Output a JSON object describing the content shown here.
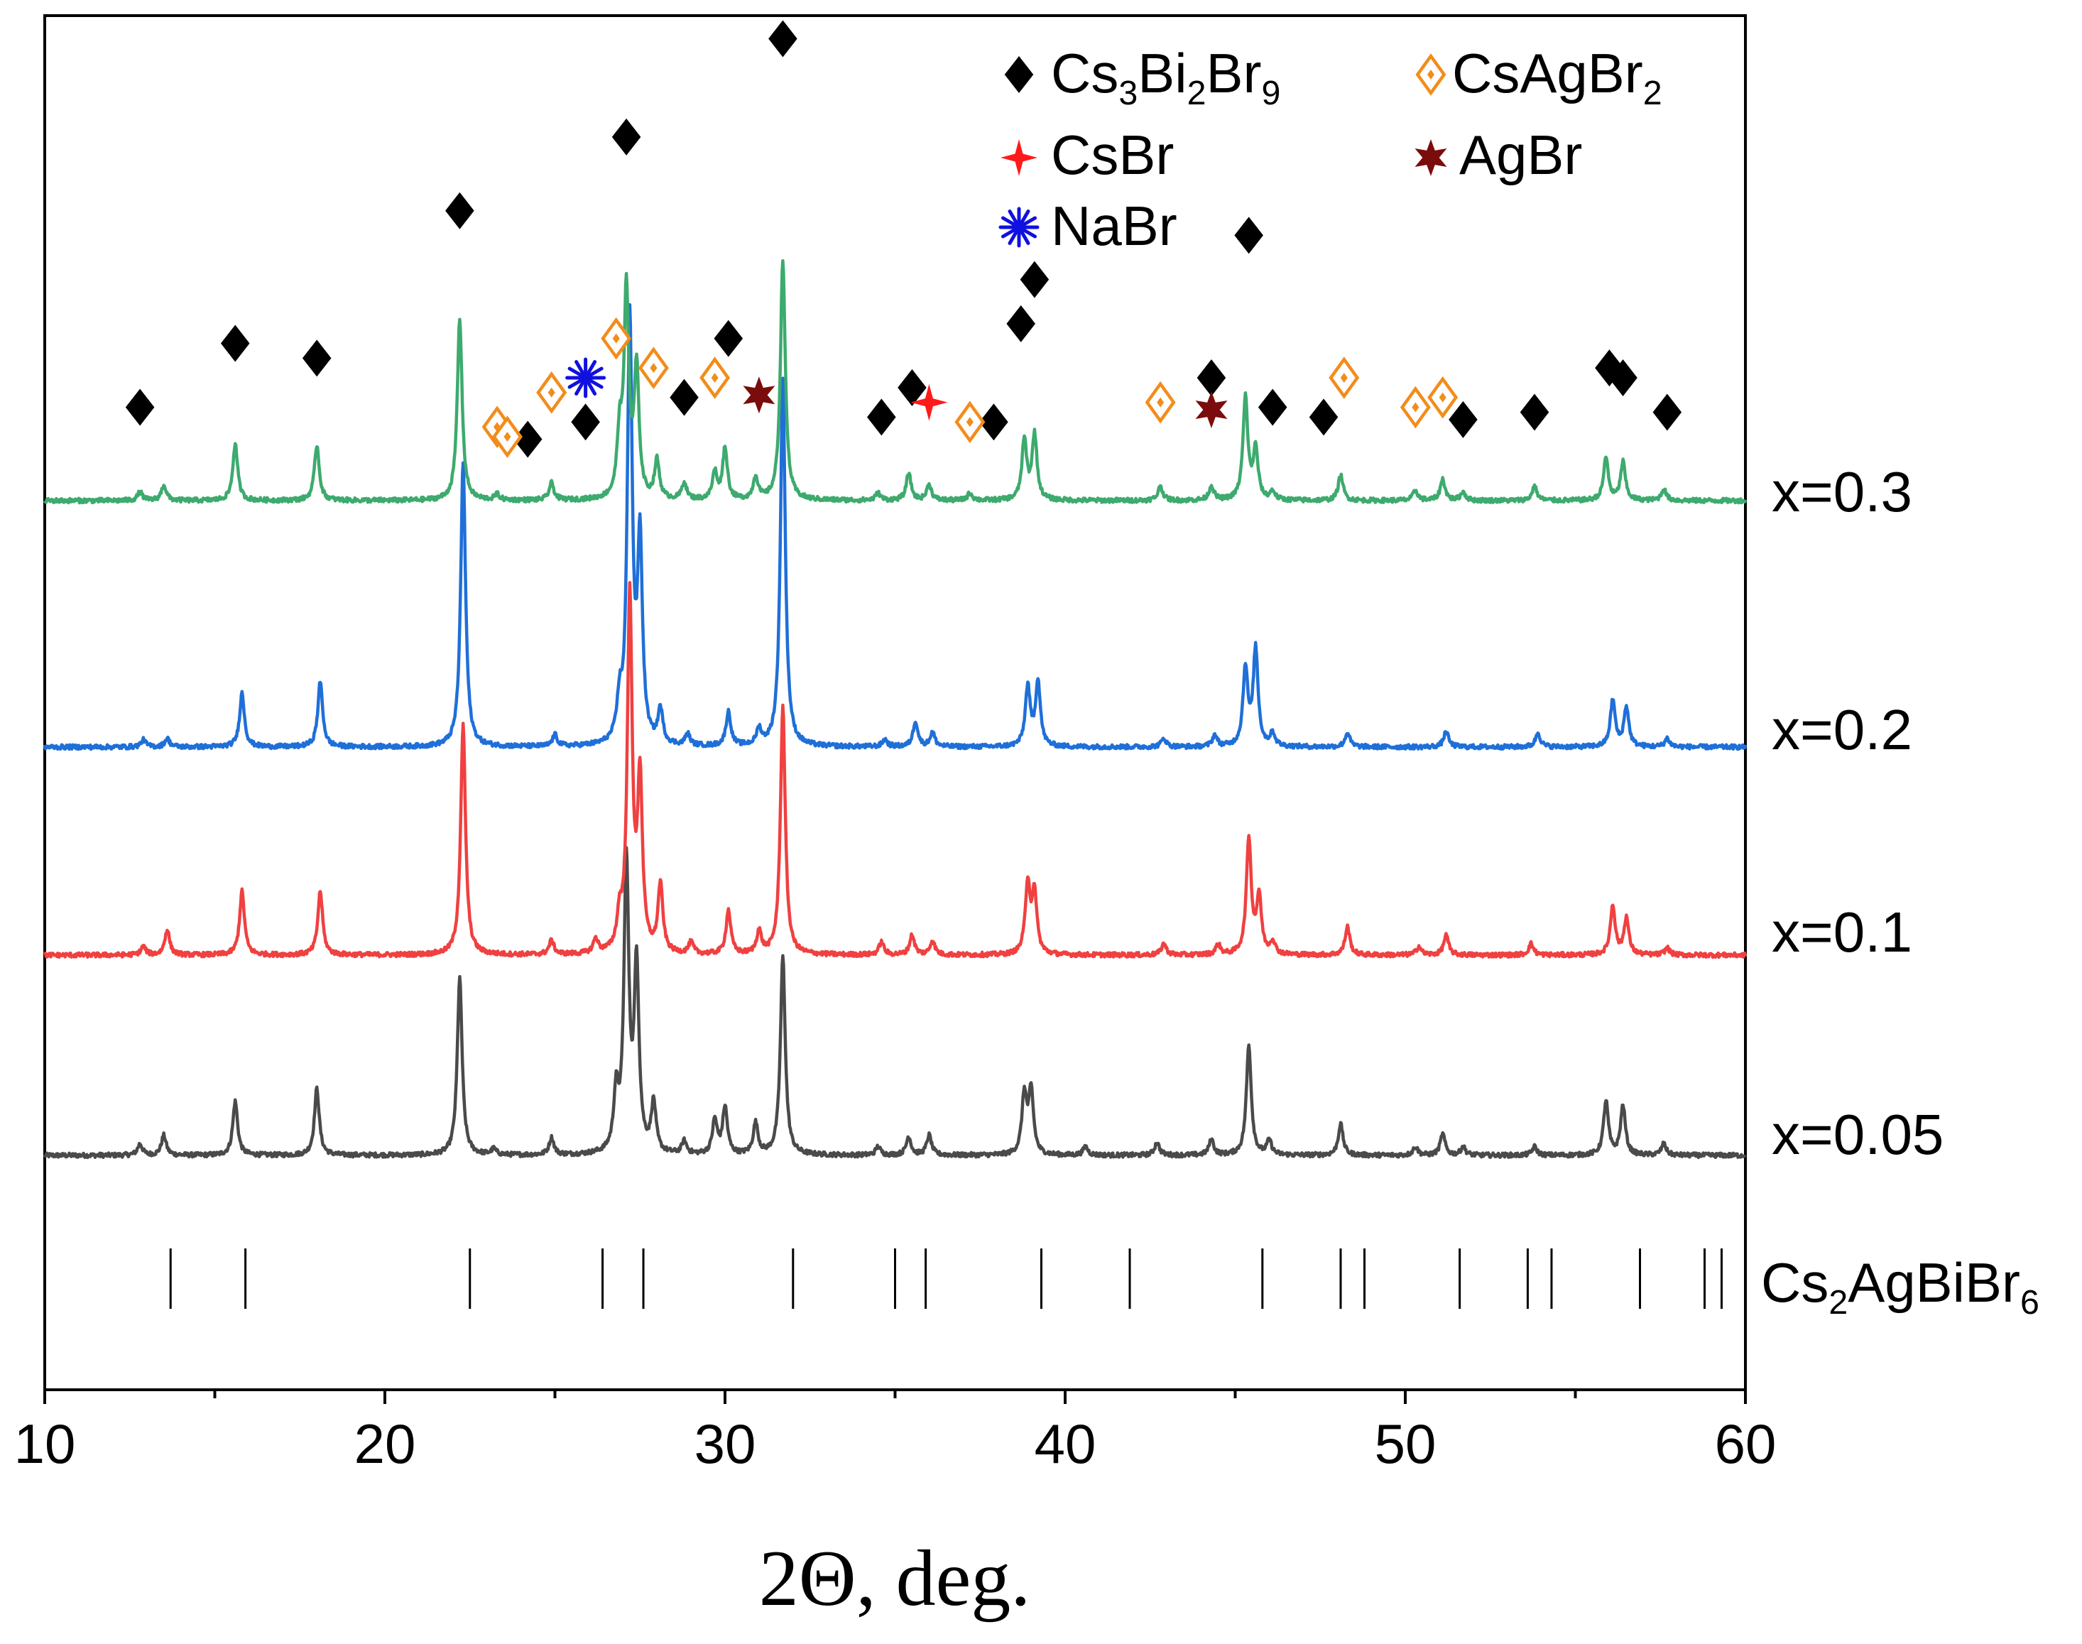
{
  "chart_data": {
    "type": "line",
    "title": "",
    "xlabel": "2Θ, deg.",
    "ylabel": "",
    "xlim": [
      10,
      60
    ],
    "x_ticks": [
      10,
      20,
      30,
      40,
      50,
      60
    ],
    "x_tick_labels": [
      "10",
      "20",
      "30",
      "40",
      "50",
      "60"
    ],
    "grid": false,
    "legend": {
      "position": "top-right",
      "entries": [
        {
          "name": "Cs3Bi2Br9",
          "base": "Cs",
          "parts": [
            [
              "Cs",
              ""
            ],
            [
              "3",
              "sub"
            ],
            [
              "Bi",
              ""
            ],
            [
              "2",
              "sub"
            ],
            [
              "Br",
              ""
            ],
            [
              "9",
              "sub"
            ]
          ],
          "marker": "diamond-filled",
          "color": "#000000"
        },
        {
          "name": "CsAgBr2",
          "parts": [
            [
              "CsAgBr",
              ""
            ],
            [
              "2",
              "sub"
            ]
          ],
          "marker": "diamond-open",
          "color": "#f28c1a"
        },
        {
          "name": "CsBr",
          "parts": [
            [
              "CsBr",
              ""
            ]
          ],
          "marker": "star4",
          "color": "#ff1a1a"
        },
        {
          "name": "AgBr",
          "parts": [
            [
              "AgBr",
              ""
            ]
          ],
          "marker": "star6",
          "color": "#7a0c0c"
        },
        {
          "name": "NaBr",
          "parts": [
            [
              "NaBr",
              ""
            ]
          ],
          "marker": "asterisk",
          "color": "#1010e0"
        }
      ]
    },
    "series": [
      {
        "name": "x=0.05",
        "label": "x=0.05",
        "color": "#4a4a4a",
        "baseline": 0,
        "peaks": [
          [
            12.8,
            8
          ],
          [
            13.5,
            14
          ],
          [
            15.6,
            38
          ],
          [
            18.0,
            47
          ],
          [
            22.2,
            125
          ],
          [
            23.2,
            4
          ],
          [
            24.9,
            12
          ],
          [
            26.8,
            40
          ],
          [
            27.1,
            205
          ],
          [
            27.4,
            130
          ],
          [
            27.9,
            35
          ],
          [
            28.8,
            9
          ],
          [
            29.7,
            24
          ],
          [
            30.0,
            33
          ],
          [
            30.9,
            22
          ],
          [
            31.7,
            140
          ],
          [
            34.5,
            6
          ],
          [
            35.4,
            13
          ],
          [
            36.0,
            14
          ],
          [
            38.8,
            42
          ],
          [
            39.0,
            44
          ],
          [
            40.6,
            6
          ],
          [
            42.7,
            9
          ],
          [
            44.3,
            11
          ],
          [
            45.4,
            78
          ],
          [
            46.0,
            10
          ],
          [
            48.1,
            22
          ],
          [
            50.3,
            6
          ],
          [
            51.1,
            15
          ],
          [
            51.7,
            6
          ],
          [
            53.8,
            6
          ],
          [
            55.9,
            38
          ],
          [
            56.4,
            35
          ],
          [
            57.6,
            8
          ]
        ]
      },
      {
        "name": "x=0.1",
        "label": "x=0.1",
        "color": "#f04040",
        "baseline": 0,
        "peaks": [
          [
            12.9,
            6
          ],
          [
            13.6,
            18
          ],
          [
            15.8,
            45
          ],
          [
            18.1,
            45
          ],
          [
            22.3,
            162
          ],
          [
            24.9,
            10
          ],
          [
            26.2,
            10
          ],
          [
            26.9,
            22
          ],
          [
            27.2,
            250
          ],
          [
            27.5,
            120
          ],
          [
            28.1,
            48
          ],
          [
            29.0,
            8
          ],
          [
            30.1,
            31
          ],
          [
            31.0,
            16
          ],
          [
            31.7,
            175
          ],
          [
            34.6,
            9
          ],
          [
            35.5,
            14
          ],
          [
            36.1,
            10
          ],
          [
            38.9,
            50
          ],
          [
            39.1,
            42
          ],
          [
            42.9,
            8
          ],
          [
            44.5,
            7
          ],
          [
            45.4,
            82
          ],
          [
            45.7,
            40
          ],
          [
            46.1,
            9
          ],
          [
            48.3,
            20
          ],
          [
            50.4,
            6
          ],
          [
            51.2,
            14
          ],
          [
            53.7,
            8
          ],
          [
            56.1,
            35
          ],
          [
            56.5,
            26
          ],
          [
            57.7,
            5
          ]
        ]
      },
      {
        "name": "x=0.2",
        "label": "x=0.2",
        "color": "#1f6fd8",
        "baseline": 0,
        "peaks": [
          [
            12.9,
            5
          ],
          [
            13.6,
            6
          ],
          [
            15.8,
            38
          ],
          [
            18.1,
            46
          ],
          [
            22.3,
            200
          ],
          [
            25.0,
            8
          ],
          [
            26.9,
            26
          ],
          [
            27.2,
            300
          ],
          [
            27.5,
            140
          ],
          [
            28.1,
            24
          ],
          [
            28.9,
            8
          ],
          [
            30.1,
            24
          ],
          [
            31.0,
            11
          ],
          [
            31.7,
            260
          ],
          [
            34.7,
            5
          ],
          [
            35.6,
            18
          ],
          [
            36.1,
            10
          ],
          [
            38.9,
            42
          ],
          [
            39.2,
            46
          ],
          [
            42.9,
            6
          ],
          [
            44.4,
            8
          ],
          [
            45.3,
            55
          ],
          [
            45.6,
            68
          ],
          [
            46.1,
            9
          ],
          [
            48.3,
            10
          ],
          [
            51.2,
            11
          ],
          [
            53.9,
            10
          ],
          [
            56.1,
            33
          ],
          [
            56.5,
            28
          ],
          [
            57.7,
            6
          ]
        ]
      },
      {
        "name": "x=0.3",
        "label": "x=0.3",
        "color": "#3daa6e",
        "baseline": 0,
        "peaks": [
          [
            12.8,
            6
          ],
          [
            13.5,
            11
          ],
          [
            15.6,
            40
          ],
          [
            18.0,
            39
          ],
          [
            22.2,
            128
          ],
          [
            23.3,
            4
          ],
          [
            24.9,
            12
          ],
          [
            26.9,
            42
          ],
          [
            27.1,
            145
          ],
          [
            27.4,
            90
          ],
          [
            28.0,
            27
          ],
          [
            28.8,
            12
          ],
          [
            29.7,
            19
          ],
          [
            30.0,
            36
          ],
          [
            30.9,
            16
          ],
          [
            31.7,
            170
          ],
          [
            34.5,
            5
          ],
          [
            35.4,
            19
          ],
          [
            36.0,
            11
          ],
          [
            37.2,
            5
          ],
          [
            38.8,
            42
          ],
          [
            39.1,
            46
          ],
          [
            42.8,
            10
          ],
          [
            44.3,
            10
          ],
          [
            45.3,
            72
          ],
          [
            45.6,
            35
          ],
          [
            46.1,
            6
          ],
          [
            48.1,
            18
          ],
          [
            50.3,
            7
          ],
          [
            51.1,
            15
          ],
          [
            51.7,
            6
          ],
          [
            53.8,
            10
          ],
          [
            55.9,
            30
          ],
          [
            56.4,
            27
          ],
          [
            57.6,
            8
          ]
        ]
      }
    ],
    "markers": {
      "Cs3Bi2Br9": [
        [
          12.8,
          38
        ],
        [
          15.6,
          64
        ],
        [
          18.0,
          58
        ],
        [
          22.2,
          118
        ],
        [
          24.2,
          25
        ],
        [
          25.9,
          32
        ],
        [
          27.1,
          148
        ],
        [
          28.8,
          42
        ],
        [
          30.1,
          66
        ],
        [
          31.7,
          188
        ],
        [
          34.6,
          34
        ],
        [
          35.5,
          46
        ],
        [
          37.9,
          32
        ],
        [
          38.7,
          72
        ],
        [
          39.1,
          90
        ],
        [
          44.3,
          50
        ],
        [
          45.4,
          108
        ],
        [
          46.1,
          38
        ],
        [
          47.6,
          34
        ],
        [
          51.7,
          33
        ],
        [
          53.8,
          36
        ],
        [
          56.0,
          54
        ],
        [
          56.4,
          50
        ],
        [
          57.7,
          36
        ]
      ],
      "CsAgBr2": [
        [
          23.3,
          30
        ],
        [
          23.6,
          26
        ],
        [
          24.9,
          44
        ],
        [
          26.8,
          66
        ],
        [
          27.9,
          54
        ],
        [
          29.7,
          50
        ],
        [
          37.2,
          32
        ],
        [
          42.8,
          40
        ],
        [
          48.2,
          50
        ],
        [
          50.3,
          38
        ],
        [
          51.1,
          42
        ]
      ],
      "CsBr": [
        [
          36.0,
          40
        ]
      ],
      "AgBr": [
        [
          31.0,
          43
        ],
        [
          44.3,
          37
        ]
      ],
      "NaBr": [
        [
          25.9,
          50
        ]
      ]
    },
    "reference": {
      "label": "Cs2AgBiBr6",
      "parts": [
        [
          "Cs",
          ""
        ],
        [
          "2",
          "sub"
        ],
        [
          "AgBiBr",
          ""
        ],
        [
          "6",
          "sub"
        ]
      ],
      "positions": [
        13.7,
        15.9,
        22.5,
        26.4,
        27.6,
        32.0,
        35.0,
        35.9,
        39.3,
        41.9,
        45.8,
        48.1,
        48.8,
        51.6,
        53.6,
        54.3,
        56.9,
        58.8,
        59.3
      ]
    }
  }
}
